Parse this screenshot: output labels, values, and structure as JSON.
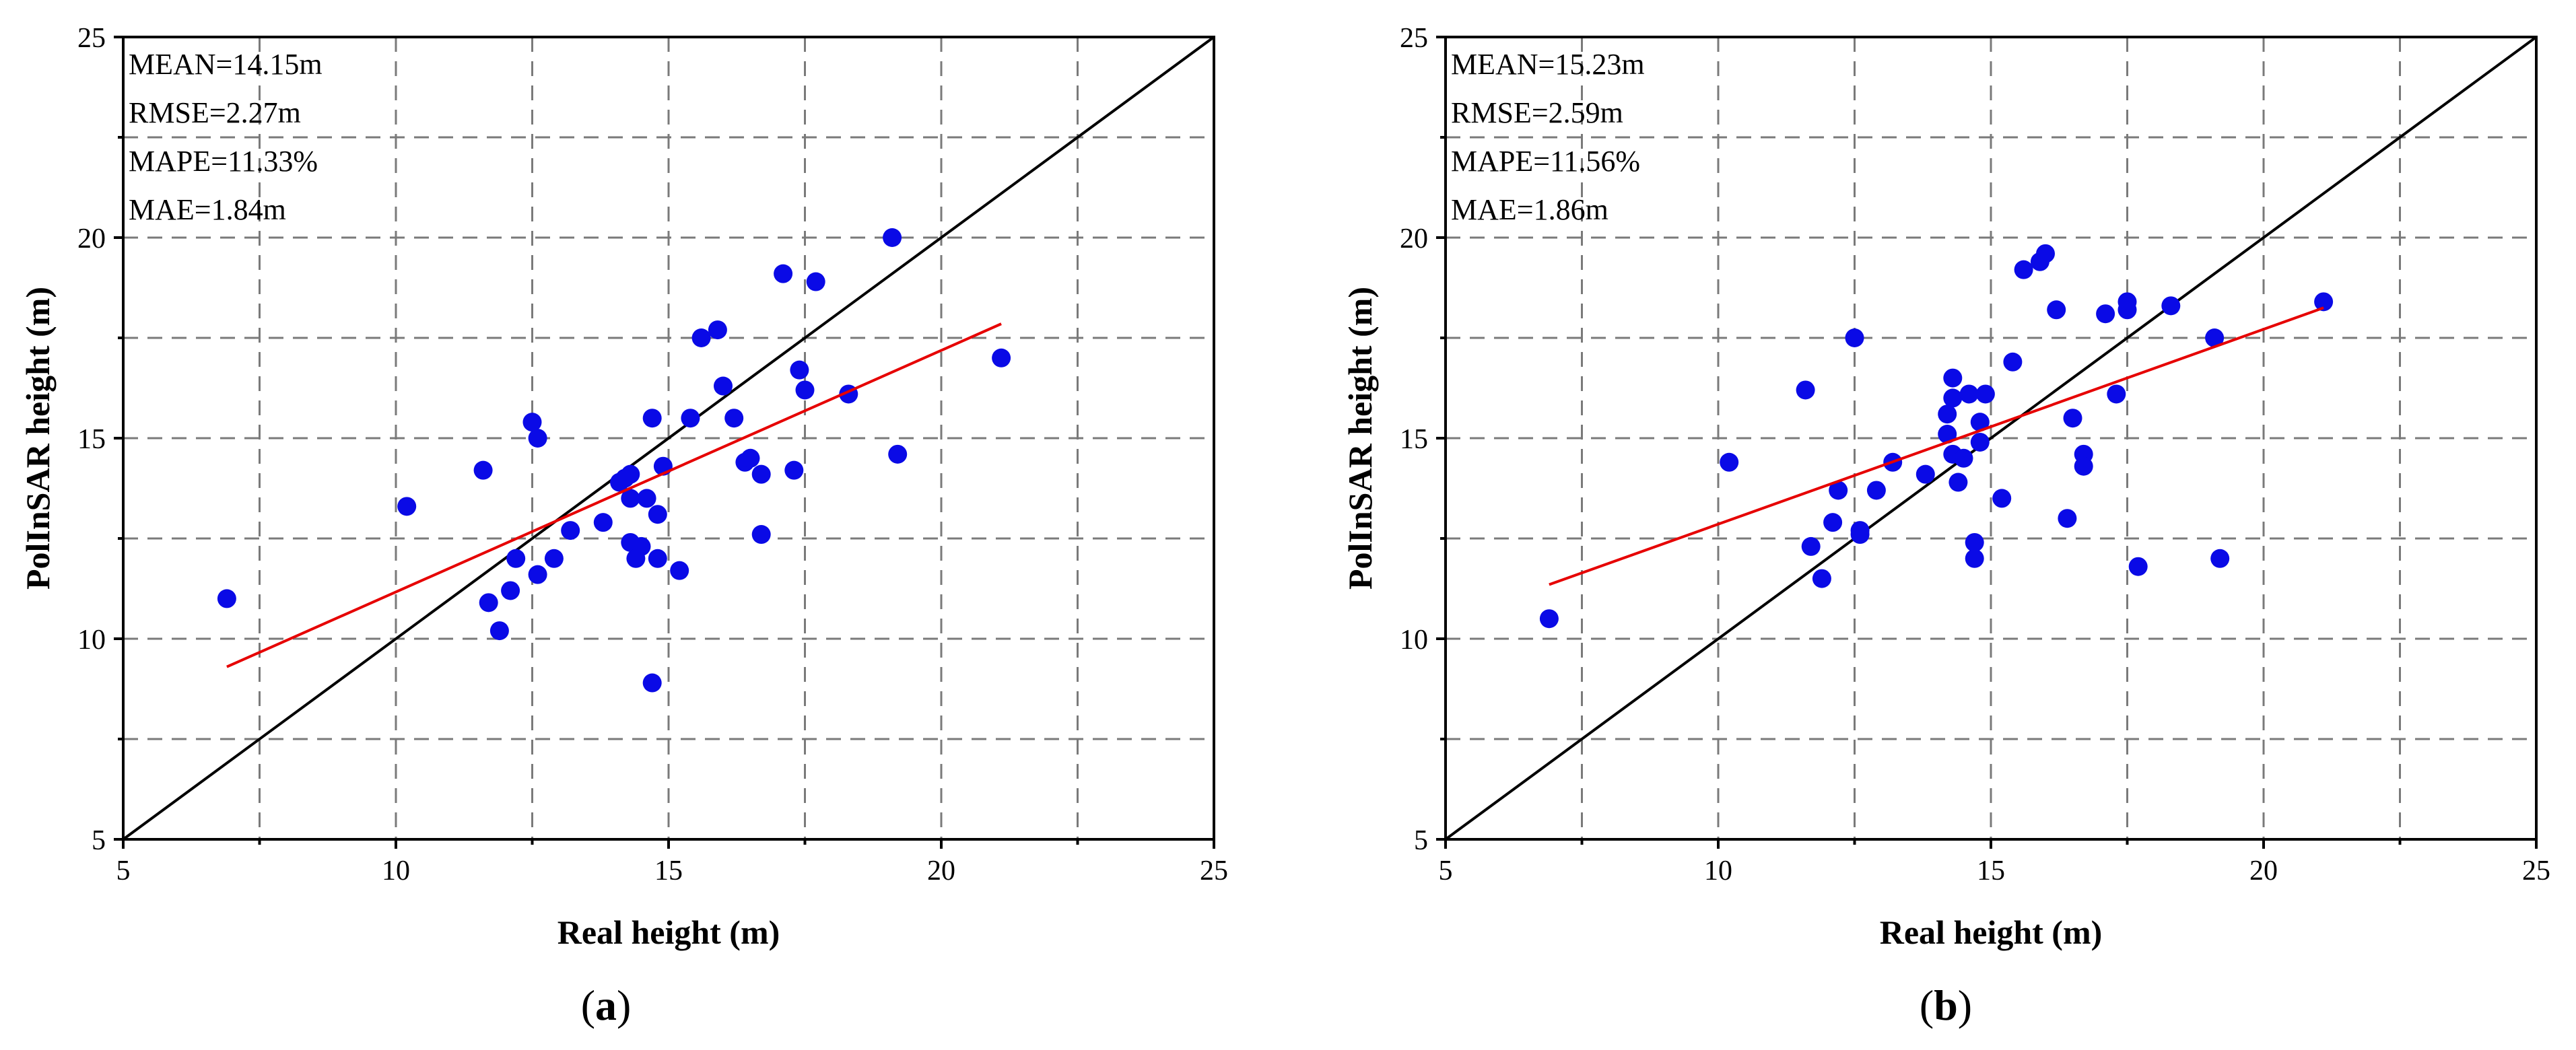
{
  "chart_data": [
    {
      "id": "a",
      "type": "scatter",
      "panel_label": "a",
      "xlabel": "Real height (m)",
      "ylabel": "PolInSAR height (m)",
      "xlim": [
        5,
        25
      ],
      "ylim": [
        5,
        25
      ],
      "major_ticks": [
        5,
        10,
        15,
        20,
        25
      ],
      "grid_values": [
        7.5,
        10,
        12.5,
        15,
        17.5,
        20,
        22.5
      ],
      "grid": true,
      "stats": [
        "MEAN=14.15m",
        "RMSE=2.27m",
        "MAPE=11.33%",
        "MAE=1.84m"
      ],
      "point_color": "#0a0ae6",
      "fit_color": "#e60000",
      "identity_color": "#000000",
      "identity_line": {
        "from": [
          5,
          5
        ],
        "to": [
          25,
          25
        ]
      },
      "fit_line": {
        "from": [
          6.9,
          9.3
        ],
        "to": [
          21.1,
          17.85
        ]
      },
      "points": [
        [
          6.9,
          11.0
        ],
        [
          10.2,
          13.3
        ],
        [
          11.6,
          14.2
        ],
        [
          11.7,
          10.9
        ],
        [
          11.9,
          10.2
        ],
        [
          12.1,
          11.2
        ],
        [
          12.2,
          12.0
        ],
        [
          12.5,
          15.4
        ],
        [
          12.6,
          15.0
        ],
        [
          12.6,
          11.6
        ],
        [
          12.9,
          12.0
        ],
        [
          13.2,
          12.7
        ],
        [
          13.8,
          12.9
        ],
        [
          14.1,
          13.9
        ],
        [
          14.2,
          14.0
        ],
        [
          14.3,
          14.1
        ],
        [
          14.3,
          13.5
        ],
        [
          14.3,
          12.4
        ],
        [
          14.4,
          12.0
        ],
        [
          14.5,
          12.3
        ],
        [
          14.6,
          13.5
        ],
        [
          14.7,
          15.5
        ],
        [
          14.7,
          8.9
        ],
        [
          14.8,
          12.0
        ],
        [
          14.8,
          13.1
        ],
        [
          14.9,
          14.3
        ],
        [
          15.2,
          11.7
        ],
        [
          15.4,
          15.5
        ],
        [
          15.6,
          17.5
        ],
        [
          15.9,
          17.7
        ],
        [
          16.0,
          16.3
        ],
        [
          16.2,
          15.5
        ],
        [
          16.4,
          14.4
        ],
        [
          16.5,
          14.5
        ],
        [
          16.7,
          14.1
        ],
        [
          16.7,
          12.6
        ],
        [
          17.1,
          19.1
        ],
        [
          17.3,
          14.2
        ],
        [
          17.4,
          16.7
        ],
        [
          17.5,
          16.2
        ],
        [
          17.7,
          18.9
        ],
        [
          18.3,
          16.1
        ],
        [
          19.1,
          20.0
        ],
        [
          19.2,
          14.6
        ],
        [
          21.1,
          17.0
        ]
      ]
    },
    {
      "id": "b",
      "type": "scatter",
      "panel_label": "b",
      "xlabel": "Real height (m)",
      "ylabel": "PolInSAR height (m)",
      "xlim": [
        5,
        25
      ],
      "ylim": [
        5,
        25
      ],
      "major_ticks": [
        5,
        10,
        15,
        20,
        25
      ],
      "grid_values": [
        7.5,
        10,
        12.5,
        15,
        17.5,
        20,
        22.5
      ],
      "grid": true,
      "stats": [
        "MEAN=15.23m",
        "RMSE=2.59m",
        "MAPE=11.56%",
        "MAE=1.86m"
      ],
      "point_color": "#0a0ae6",
      "fit_color": "#e60000",
      "identity_color": "#000000",
      "identity_line": {
        "from": [
          5,
          5
        ],
        "to": [
          25,
          25
        ]
      },
      "fit_line": {
        "from": [
          6.9,
          11.35
        ],
        "to": [
          21.1,
          18.25
        ]
      },
      "points": [
        [
          6.9,
          10.5
        ],
        [
          10.2,
          14.4
        ],
        [
          11.6,
          16.2
        ],
        [
          11.7,
          12.3
        ],
        [
          11.9,
          11.5
        ],
        [
          12.1,
          12.9
        ],
        [
          12.2,
          13.7
        ],
        [
          12.5,
          17.5
        ],
        [
          12.6,
          12.7
        ],
        [
          12.6,
          12.6
        ],
        [
          12.9,
          13.7
        ],
        [
          13.2,
          14.4
        ],
        [
          13.8,
          14.1
        ],
        [
          14.2,
          15.1
        ],
        [
          14.2,
          15.6
        ],
        [
          14.3,
          16.0
        ],
        [
          14.3,
          16.5
        ],
        [
          14.3,
          14.6
        ],
        [
          14.4,
          13.9
        ],
        [
          14.5,
          14.5
        ],
        [
          14.6,
          16.1
        ],
        [
          14.7,
          12.4
        ],
        [
          14.7,
          12.0
        ],
        [
          14.8,
          14.9
        ],
        [
          14.8,
          15.4
        ],
        [
          14.9,
          16.1
        ],
        [
          15.2,
          13.5
        ],
        [
          15.4,
          16.9
        ],
        [
          15.6,
          19.2
        ],
        [
          15.9,
          19.4
        ],
        [
          16.0,
          19.6
        ],
        [
          16.2,
          18.2
        ],
        [
          16.4,
          13.0
        ],
        [
          16.5,
          15.5
        ],
        [
          16.7,
          14.6
        ],
        [
          16.7,
          14.3
        ],
        [
          17.1,
          18.1
        ],
        [
          17.3,
          16.1
        ],
        [
          17.5,
          18.2
        ],
        [
          17.5,
          18.4
        ],
        [
          17.7,
          11.8
        ],
        [
          18.3,
          18.3
        ],
        [
          19.1,
          17.5
        ],
        [
          19.2,
          12.0
        ],
        [
          21.1,
          18.4
        ]
      ]
    }
  ]
}
